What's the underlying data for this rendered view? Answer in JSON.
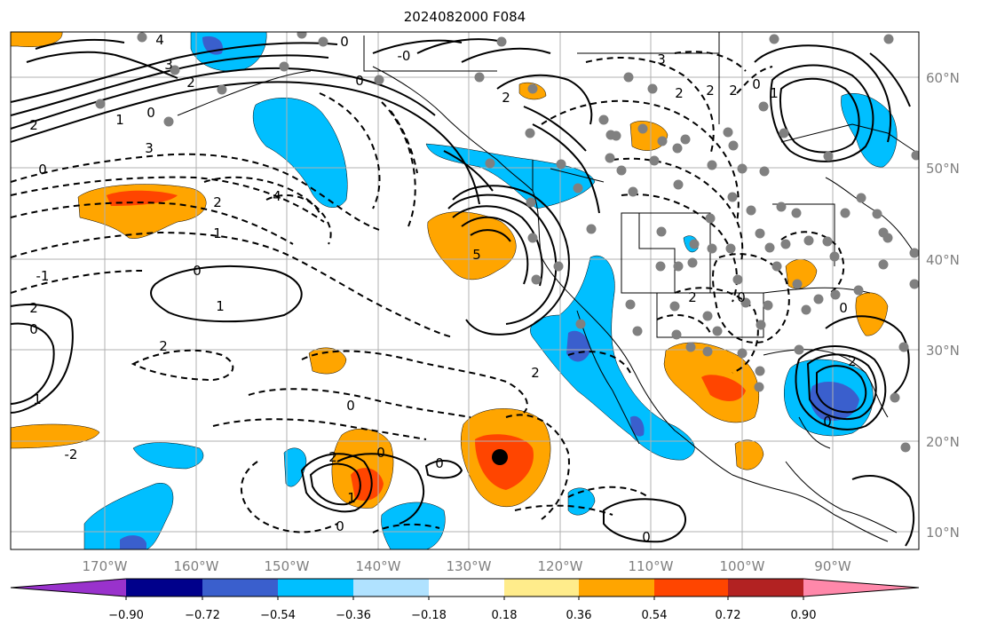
{
  "title": "2024082000 F084",
  "lat_labels": [
    "60°N",
    "50°N",
    "40°N",
    "30°N",
    "20°N",
    "10°N"
  ],
  "lon_labels": [
    "170°W",
    "160°W",
    "150°W",
    "140°W",
    "130°W",
    "120°W",
    "110°W",
    "100°W",
    "90°W"
  ],
  "colorbar": {
    "colors": [
      "#9932cc",
      "#00008b",
      "#3a5fcd",
      "#00bfff",
      "#b0e2ff",
      "#ffffff",
      "#ffec8b",
      "#ffa500",
      "#ff4500",
      "#b22222",
      "#ff88aa"
    ],
    "labels": [
      "−0.90",
      "−0.72",
      "−0.54",
      "−0.36",
      "−0.18",
      "0.18",
      "0.36",
      "0.54",
      "0.72",
      "0.90"
    ]
  },
  "contour_labels": [
    "4",
    "3",
    "2",
    "0",
    "-0",
    "0",
    "2",
    "3",
    "1",
    "0",
    "2",
    "3",
    "4",
    "2",
    "1",
    "0",
    "-1",
    "0",
    "1",
    "2",
    "0",
    "1",
    "2",
    "0",
    "-2",
    "2",
    "0",
    "0",
    "1",
    "5",
    "2",
    "0",
    "2",
    "2",
    "2",
    "0",
    "1",
    "2",
    "0",
    "0",
    "2",
    "0",
    "0"
  ]
}
